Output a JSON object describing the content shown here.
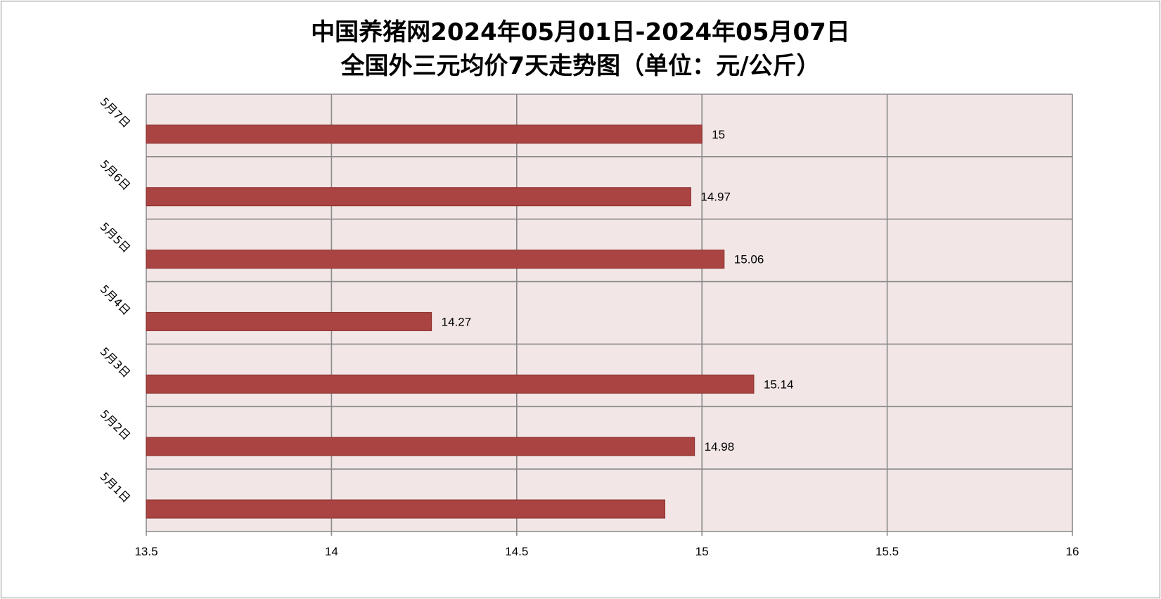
{
  "chart_data": {
    "type": "bar",
    "orientation": "horizontal",
    "title_line1": "中国养猪网2024年05月01日-2024年05月07日",
    "title_line2": "全国外三元均价7天走势图（单位：元/公斤）",
    "categories": [
      "5月1日",
      "5月2日",
      "5月3日",
      "5月4日",
      "5月5日",
      "5月6日",
      "5月7日"
    ],
    "values": [
      14.9,
      14.98,
      15.14,
      14.27,
      15.06,
      14.97,
      15
    ],
    "data_labels": [
      "",
      "14.98",
      "15.14",
      "14.27",
      "15.06",
      "14.97",
      "15"
    ],
    "xlim": [
      13.5,
      16
    ],
    "xticks": [
      "13.5",
      "14",
      "14.5",
      "15",
      "15.5",
      "16"
    ],
    "grid": true,
    "bar_color": "#aa4443",
    "plot_background": "#f2e6e6",
    "grid_color": "#8a8a8a"
  }
}
